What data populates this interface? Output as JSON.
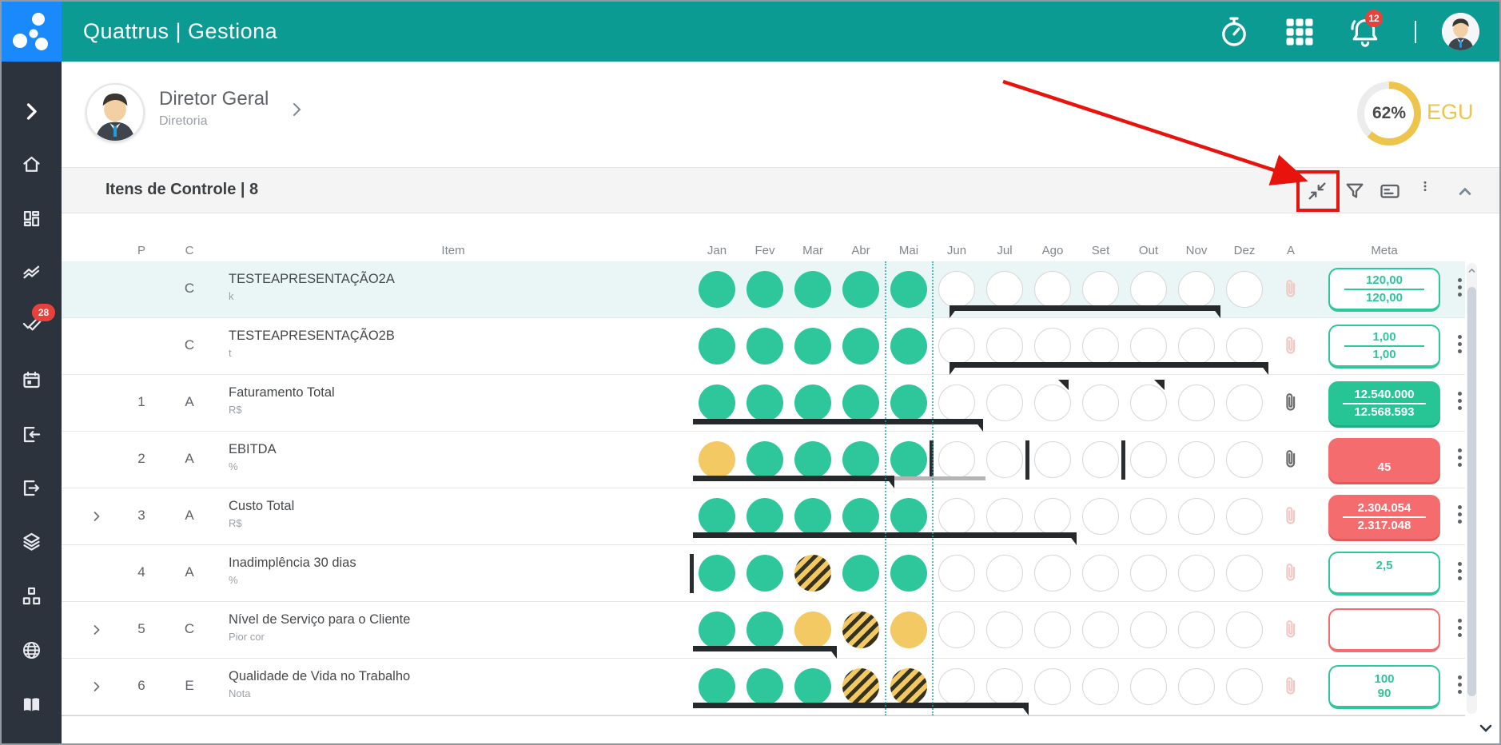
{
  "app": {
    "brand": "Quattrus | Gestiona"
  },
  "header": {
    "notification_count": "12",
    "icons": {
      "timer": "stopwatch-icon",
      "apps": "apps-grid-icon",
      "alerts": "notifications-bell-icon",
      "user": "user-avatar"
    }
  },
  "sidebar": {
    "items": [
      {
        "id": "expand-menu",
        "icon": "chevron-right"
      },
      {
        "id": "home",
        "icon": "home"
      },
      {
        "id": "dashboard",
        "icon": "dashboard"
      },
      {
        "id": "indicators",
        "icon": "trend"
      },
      {
        "id": "approvals",
        "icon": "checks",
        "badge": "28"
      },
      {
        "id": "calendar",
        "icon": "calendar"
      },
      {
        "id": "check-in",
        "icon": "box-arrow-in"
      },
      {
        "id": "check-out",
        "icon": "box-arrow-out"
      },
      {
        "id": "layers",
        "icon": "layers"
      },
      {
        "id": "org-chart",
        "icon": "sitemap"
      },
      {
        "id": "portal",
        "icon": "globe"
      },
      {
        "id": "knowledge-base",
        "icon": "book"
      }
    ]
  },
  "profile": {
    "name": "Diretor Geral",
    "role": "Diretoria"
  },
  "gauge": {
    "percent": 62,
    "display": "62%",
    "label": "EGU"
  },
  "panel": {
    "title": "Itens de Controle | 8"
  },
  "table": {
    "headers": {
      "p": "P",
      "c": "C",
      "item": "Item",
      "attachment": "A",
      "meta": "Meta"
    },
    "months": [
      "Jan",
      "Fev",
      "Mar",
      "Abr",
      "Mai",
      "Jun",
      "Jul",
      "Ago",
      "Set",
      "Out",
      "Nov",
      "Dez"
    ],
    "current_month_index": 4,
    "rows": [
      {
        "expandable": false,
        "highlight": true,
        "p": "",
        "c": "C",
        "item": "TESTEAPRESENTAÇÃO2A",
        "unit": "k",
        "months": [
          "g",
          "g",
          "g",
          "g",
          "g",
          "e",
          "e",
          "e",
          "e",
          "e",
          "e",
          "e"
        ],
        "bar": {
          "start": 5.35,
          "end": 11.0,
          "left_arrow": true,
          "right_arrow": true
        },
        "clip": "light",
        "meta": {
          "variant": "outline-green",
          "line1": "120,00",
          "line2": "120,00",
          "divider": true
        }
      },
      {
        "expandable": false,
        "highlight": false,
        "p": "",
        "c": "C",
        "item": "TESTEAPRESENTAÇÃO2B",
        "unit": "t",
        "months": [
          "g",
          "g",
          "g",
          "g",
          "g",
          "e",
          "e",
          "e",
          "e",
          "e",
          "e",
          "e"
        ],
        "bar": {
          "start": 5.35,
          "end": 12.0,
          "left_arrow": true,
          "right_arrow": true
        },
        "clip": "light",
        "meta": {
          "variant": "outline-green",
          "line1": "1,00",
          "line2": "1,00",
          "divider": true
        }
      },
      {
        "expandable": false,
        "highlight": false,
        "p": "1",
        "c": "A",
        "item": "Faturamento Total",
        "unit": "R$",
        "months": [
          "g",
          "g",
          "g",
          "g",
          "g",
          "e",
          "e",
          "e",
          "e",
          "e",
          "e",
          "e"
        ],
        "flags": [
          7,
          9
        ],
        "bar": {
          "start": 0,
          "end": 6.05,
          "right_arrow": true
        },
        "clip": "dark",
        "meta": {
          "variant": "fill-green",
          "line1": "12.540.000",
          "line2": "12.568.593",
          "divider": true
        }
      },
      {
        "expandable": false,
        "highlight": false,
        "p": "2",
        "c": "A",
        "item": "EBITDA",
        "unit": "%",
        "months": [
          "y",
          "g",
          "g",
          "g",
          "g",
          "e",
          "e",
          "e",
          "e",
          "e",
          "e",
          "e"
        ],
        "ticks": [
          5,
          7,
          9
        ],
        "bar": {
          "start": 0,
          "end": 4.2,
          "right_arrow": true,
          "grey_end": 6.1
        },
        "clip": "dark",
        "meta": {
          "variant": "fill-red",
          "line1": "",
          "line2": "45",
          "divider": false
        }
      },
      {
        "expandable": true,
        "highlight": false,
        "p": "3",
        "c": "A",
        "item": "Custo Total",
        "unit": "R$",
        "months": [
          "g",
          "g",
          "g",
          "g",
          "g",
          "e",
          "e",
          "e",
          "e",
          "e",
          "e",
          "e"
        ],
        "bar": {
          "start": 0,
          "end": 8.0,
          "right_arrow": true
        },
        "clip": "light",
        "meta": {
          "variant": "fill-red",
          "line1": "2.304.054",
          "line2": "2.317.048",
          "divider": true
        }
      },
      {
        "expandable": false,
        "highlight": false,
        "p": "4",
        "c": "A",
        "item": "Inadimplência 30 dias",
        "unit": "%",
        "months": [
          "g",
          "g",
          "h",
          "g",
          "g",
          "e",
          "e",
          "e",
          "e",
          "e",
          "e",
          "e"
        ],
        "ticks": [
          0
        ],
        "clip": "light",
        "meta": {
          "variant": "outline-green",
          "line1": "2,5",
          "line2": "",
          "divider": false
        }
      },
      {
        "expandable": true,
        "highlight": false,
        "p": "5",
        "c": "C",
        "item": "Nível de Serviço para o Cliente",
        "unit": "Pior cor",
        "months": [
          "g",
          "g",
          "y",
          "h",
          "y",
          "e",
          "e",
          "e",
          "e",
          "e",
          "e",
          "e"
        ],
        "bar": {
          "start": 0,
          "end": 3.0,
          "right_arrow": true
        },
        "clip": "light",
        "meta": {
          "variant": "outline-red",
          "line1": "",
          "line2": "",
          "divider": false
        }
      },
      {
        "expandable": true,
        "highlight": false,
        "p": "6",
        "c": "E",
        "item": "Qualidade de Vida no Trabalho",
        "unit": "Nota",
        "months": [
          "g",
          "g",
          "g",
          "h",
          "h",
          "e",
          "e",
          "e",
          "e",
          "e",
          "e",
          "e"
        ],
        "bar": {
          "start": 0,
          "end": 7.0,
          "right_arrow": true
        },
        "clip": "light",
        "meta": {
          "variant": "outline-green",
          "line1": "100",
          "line2": "90",
          "divider": false
        }
      }
    ]
  },
  "annotation": {
    "type": "red-arrow-pointing-to-collapse-button",
    "color": "#E8130C"
  },
  "colors": {
    "teal": "#0C9B93",
    "logo_blue": "#1989FB",
    "green": "#2EC69B",
    "yellow": "#F2C962",
    "red": "#F56C6E",
    "gauge_yellow": "#EDC44C",
    "sidebar": "#2D333C"
  }
}
